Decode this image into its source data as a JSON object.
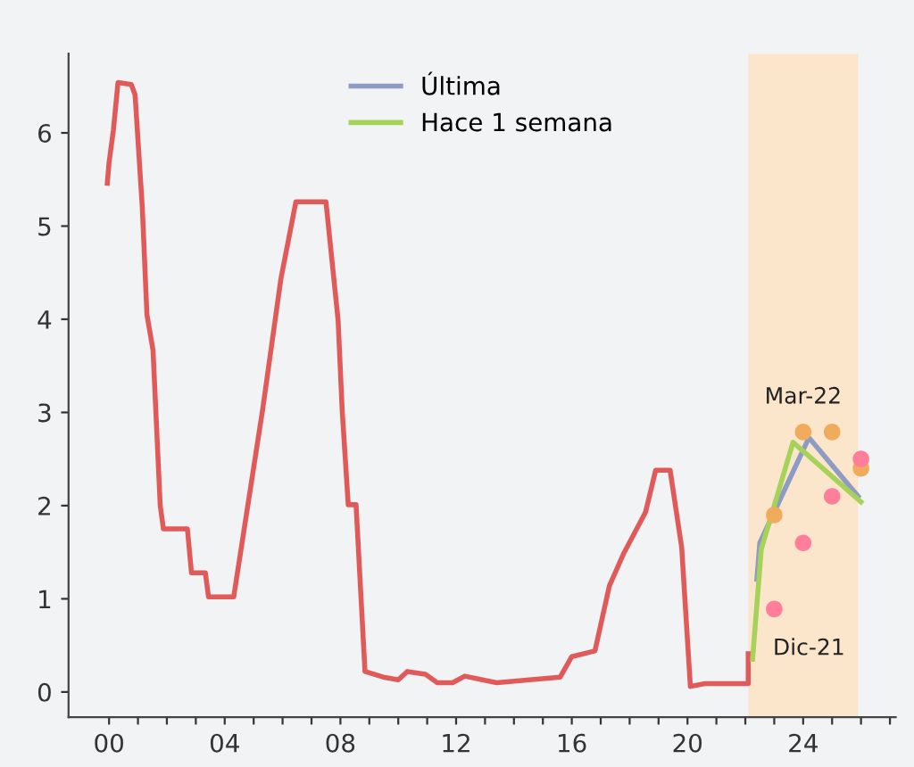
{
  "chart_data": {
    "type": "line",
    "series": [
      {
        "color": "#e05a5a",
        "x": [
          -0.06,
          0,
          0.15,
          0.31,
          0.77,
          0.9,
          1.15,
          1.31,
          1.52,
          1.77,
          1.88,
          2.71,
          2.85,
          3.33,
          3.44,
          4.31,
          5.31,
          5.94,
          6.46,
          7.5,
          7.92,
          8.06,
          8.27,
          8.54,
          8.85,
          9.48,
          10.0,
          10.31,
          10.94,
          11.35,
          11.88,
          12.3,
          13.4,
          15.6,
          16.0,
          16.8,
          17.3,
          17.8,
          18.55,
          18.9,
          19.4,
          19.8,
          20.1,
          20.6,
          22.1,
          22.1
        ],
        "values": [
          5.46,
          5.68,
          6.03,
          6.54,
          6.52,
          6.41,
          5.2,
          4.05,
          3.67,
          2.0,
          1.75,
          1.75,
          1.28,
          1.28,
          1.02,
          1.02,
          3.03,
          4.43,
          5.26,
          5.26,
          3.99,
          3.03,
          2.01,
          2.01,
          0.22,
          0.16,
          0.13,
          0.22,
          0.19,
          0.1,
          0.1,
          0.17,
          0.1,
          0.16,
          0.38,
          0.44,
          1.14,
          1.49,
          1.93,
          2.38,
          2.38,
          1.55,
          0.06,
          0.09,
          0.09,
          0.41
        ]
      },
      {
        "name": "Última",
        "color": "#8e9bc4",
        "x": [
          22.4,
          22.5,
          24.2,
          25.9
        ],
        "values": [
          1.21,
          1.6,
          2.73,
          2.1
        ]
      },
      {
        "name": "Hace 1 semana",
        "color": "#a6d25a",
        "x": [
          22.25,
          22.55,
          23.65,
          26.0
        ],
        "values": [
          0.35,
          1.53,
          2.68,
          2.04
        ]
      },
      {
        "type": "scatter",
        "marker": "circle",
        "color": "#f0ac5c",
        "x": [
          23,
          24,
          25,
          26
        ],
        "values": [
          1.9,
          2.79,
          2.79,
          2.4
        ]
      },
      {
        "type": "scatter",
        "marker": "circle",
        "color": "#ff7f9a",
        "x": [
          23,
          24,
          25,
          26
        ],
        "values": [
          0.89,
          1.6,
          2.1,
          2.5
        ]
      }
    ],
    "annotations": [
      {
        "text": "Mar-22",
        "x": 24,
        "y": 2.79
      },
      {
        "text": "Dic-21",
        "x": 23,
        "y": 0.89
      }
    ],
    "bands": [
      {
        "axis": "x",
        "from": 22.1,
        "to": 25.9,
        "color": "#fbe6cc"
      }
    ],
    "xlim": [
      -1.4,
      27.2
    ],
    "ylim": [
      -0.27,
      6.85
    ],
    "xticks": [
      {
        "value": 0,
        "label": "00"
      },
      {
        "value": 1,
        "label": null
      },
      {
        "value": 2,
        "label": null
      },
      {
        "value": 3,
        "label": null
      },
      {
        "value": 4,
        "label": "04"
      },
      {
        "value": 5,
        "label": null
      },
      {
        "value": 6,
        "label": null
      },
      {
        "value": 7,
        "label": null
      },
      {
        "value": 8,
        "label": "08"
      },
      {
        "value": 9,
        "label": null
      },
      {
        "value": 10,
        "label": null
      },
      {
        "value": 11,
        "label": null
      },
      {
        "value": 12,
        "label": "12"
      },
      {
        "value": 13,
        "label": null
      },
      {
        "value": 14,
        "label": null
      },
      {
        "value": 15,
        "label": null
      },
      {
        "value": 16,
        "label": "16"
      },
      {
        "value": 17,
        "label": null
      },
      {
        "value": 18,
        "label": null
      },
      {
        "value": 19,
        "label": null
      },
      {
        "value": 20,
        "label": "20"
      },
      {
        "value": 21,
        "label": null
      },
      {
        "value": 22,
        "label": null
      },
      {
        "value": 23,
        "label": null
      },
      {
        "value": 24,
        "label": "24"
      },
      {
        "value": 25,
        "label": null
      },
      {
        "value": 26,
        "label": null
      },
      {
        "value": 27,
        "label": null
      }
    ],
    "yticks": [
      0,
      1,
      2,
      3,
      4,
      5,
      6
    ],
    "grid": false,
    "legend": "top"
  }
}
